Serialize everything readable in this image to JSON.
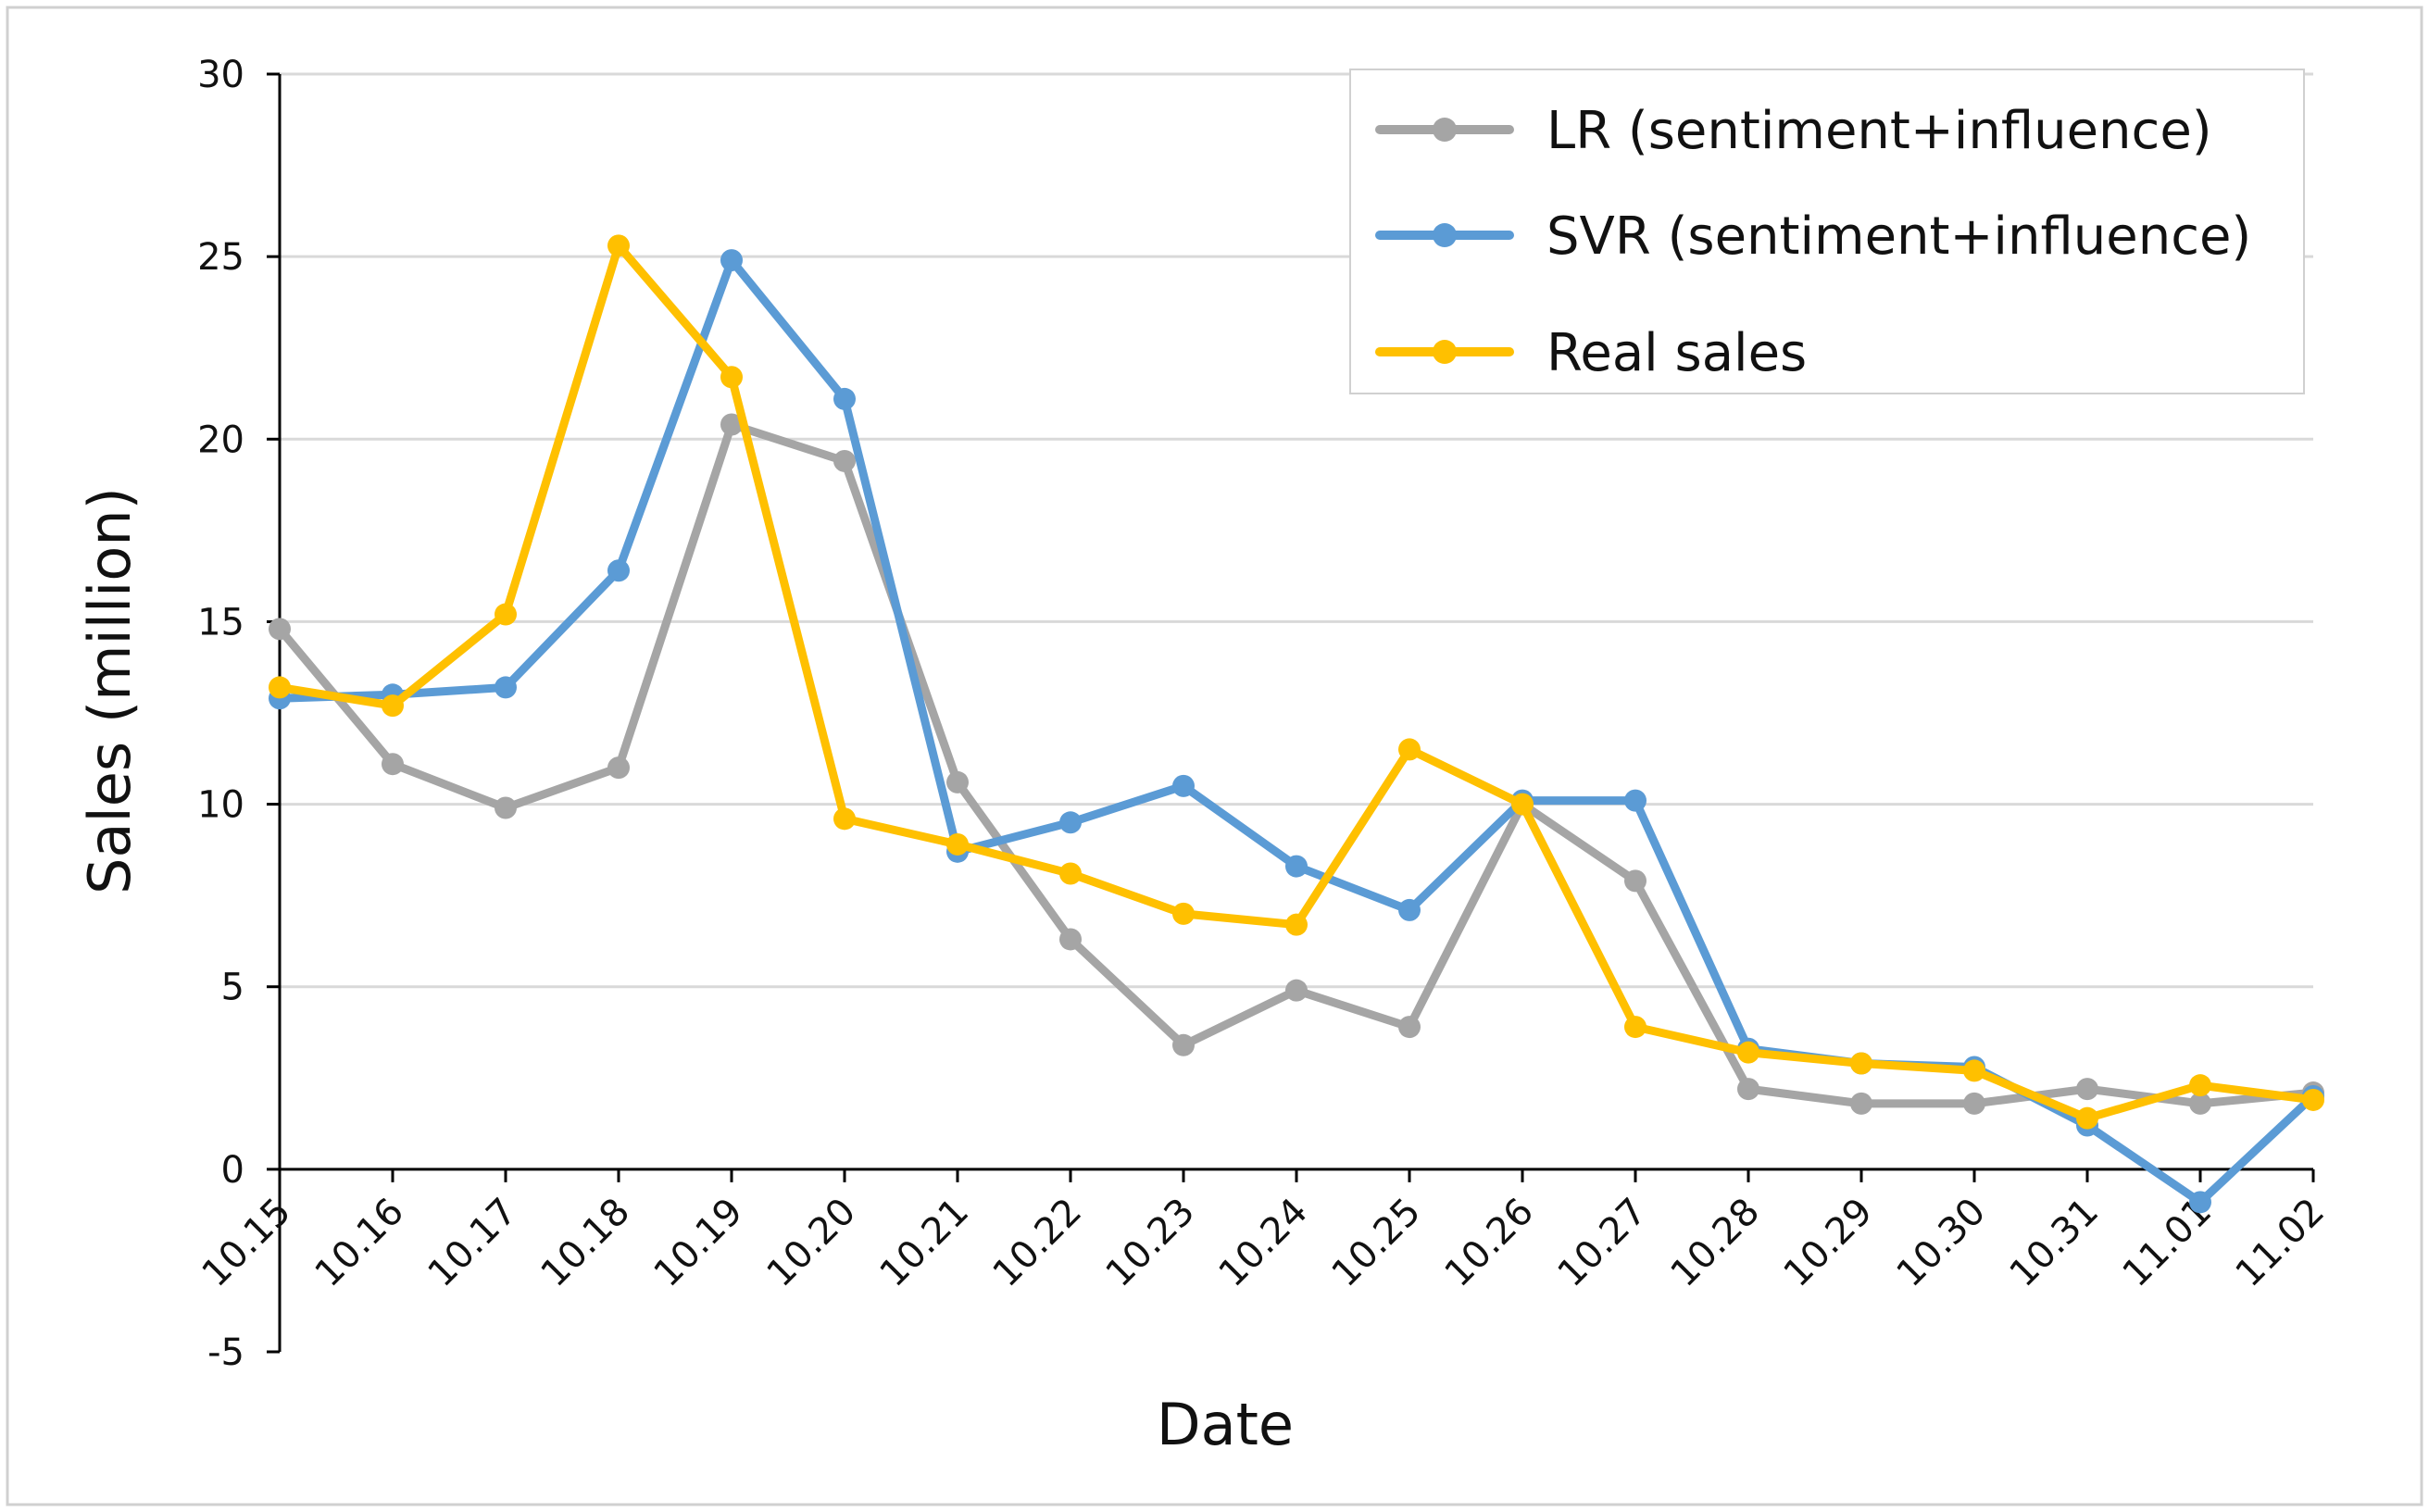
{
  "chart_data": {
    "type": "line",
    "xlabel": "Date",
    "ylabel": "Sales (million)",
    "ylim": [
      -5,
      30
    ],
    "yticks": [
      -5,
      0,
      5,
      10,
      15,
      20,
      25,
      30
    ],
    "grid": true,
    "legend_position": "top-right",
    "categories": [
      "10.15",
      "10.16",
      "10.17",
      "10.18",
      "10.19",
      "10.20",
      "10.21",
      "10.22",
      "10.23",
      "10.24",
      "10.25",
      "10.26",
      "10.27",
      "10.28",
      "10.29",
      "10.30",
      "10.31",
      "11.01",
      "11.02"
    ],
    "series": [
      {
        "name": "LR (sentiment+influence)",
        "color": "#a5a5a5",
        "values": [
          14.8,
          11.1,
          9.9,
          11.0,
          20.4,
          19.4,
          10.6,
          6.3,
          3.4,
          4.9,
          3.9,
          10.0,
          7.9,
          2.2,
          1.8,
          1.8,
          2.2,
          1.8,
          2.1
        ]
      },
      {
        "name": "SVR (sentiment+influence)",
        "color": "#5b9bd5",
        "values": [
          12.9,
          13.0,
          13.2,
          16.4,
          24.9,
          21.1,
          8.7,
          9.5,
          10.5,
          8.3,
          7.1,
          10.1,
          10.1,
          3.3,
          2.9,
          2.8,
          1.2,
          -0.9,
          2.0
        ]
      },
      {
        "name": "Real sales",
        "color": "#ffc000",
        "values": [
          13.2,
          12.7,
          15.2,
          25.3,
          21.7,
          9.6,
          8.9,
          8.1,
          7.0,
          6.7,
          11.5,
          10.0,
          3.9,
          3.2,
          2.9,
          2.7,
          1.4,
          2.3,
          1.9
        ]
      }
    ]
  }
}
